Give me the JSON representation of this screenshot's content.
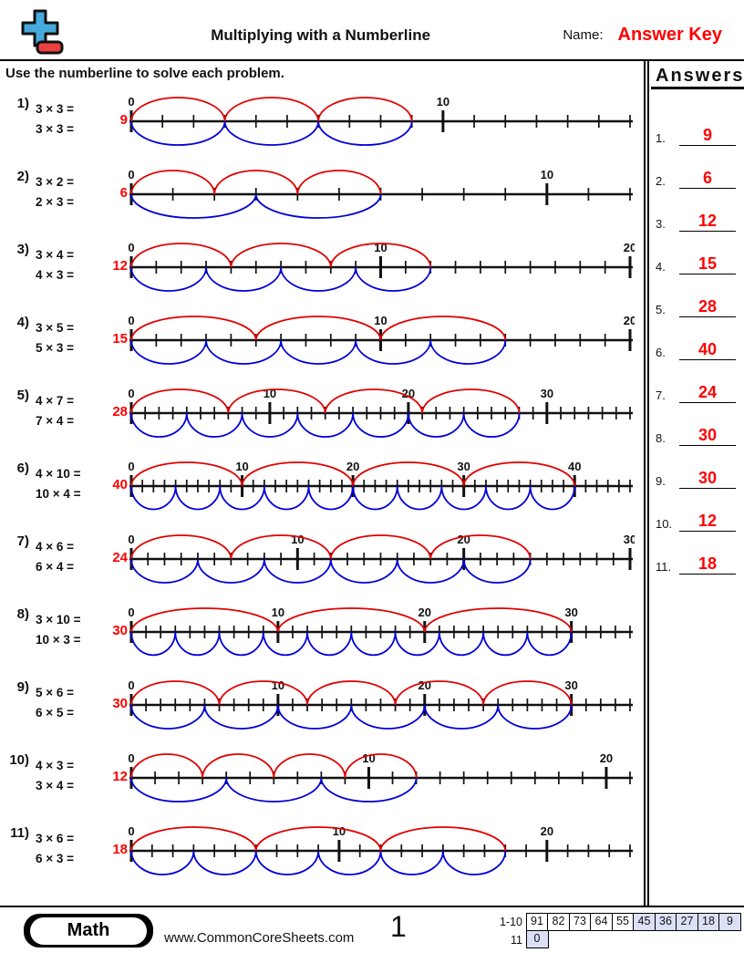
{
  "header": {
    "title": "Multiplying with a Numberline",
    "name_label": "Name:",
    "name_value": "Answer Key"
  },
  "instruction": "Use the numberline to solve each problem.",
  "answers_panel": {
    "title": "Answers",
    "items": [
      {
        "num": "1.",
        "value": "9"
      },
      {
        "num": "2.",
        "value": "6"
      },
      {
        "num": "3.",
        "value": "12"
      },
      {
        "num": "4.",
        "value": "15"
      },
      {
        "num": "5.",
        "value": "28"
      },
      {
        "num": "6.",
        "value": "40"
      },
      {
        "num": "7.",
        "value": "24"
      },
      {
        "num": "8.",
        "value": "30"
      },
      {
        "num": "9.",
        "value": "30"
      },
      {
        "num": "10.",
        "value": "12"
      },
      {
        "num": "11.",
        "value": "18"
      }
    ]
  },
  "problems": [
    {
      "num": "1)",
      "eq1": "3 × 3 =",
      "eq2": "3 × 3 =",
      "answer": "9",
      "numberline": {
        "end": 16,
        "tick_step": 1,
        "labels": [
          0,
          10
        ],
        "red_arcs": {
          "count": 3,
          "span": 3
        },
        "blue_arcs": {
          "count": 3,
          "span": 3
        }
      }
    },
    {
      "num": "2)",
      "eq1": "3 × 2 =",
      "eq2": "2 × 3 =",
      "answer": "6",
      "numberline": {
        "end": 12,
        "tick_step": 1,
        "labels": [
          0,
          10
        ],
        "red_arcs": {
          "count": 3,
          "span": 2
        },
        "blue_arcs": {
          "count": 2,
          "span": 3
        }
      }
    },
    {
      "num": "3)",
      "eq1": "3 × 4 =",
      "eq2": "4 × 3 =",
      "answer": "12",
      "numberline": {
        "end": 20,
        "tick_step": 1,
        "labels": [
          0,
          10,
          20
        ],
        "red_arcs": {
          "count": 3,
          "span": 4
        },
        "blue_arcs": {
          "count": 4,
          "span": 3
        }
      }
    },
    {
      "num": "4)",
      "eq1": "3 × 5 =",
      "eq2": "5 × 3 =",
      "answer": "15",
      "numberline": {
        "end": 20,
        "tick_step": 1,
        "labels": [
          0,
          10,
          20
        ],
        "red_arcs": {
          "count": 3,
          "span": 5
        },
        "blue_arcs": {
          "count": 5,
          "span": 3
        }
      }
    },
    {
      "num": "5)",
      "eq1": "4 × 7 =",
      "eq2": "7 × 4 =",
      "answer": "28",
      "numberline": {
        "end": 36,
        "tick_step": 1,
        "labels": [
          0,
          10,
          20,
          30
        ],
        "red_arcs": {
          "count": 4,
          "span": 7
        },
        "blue_arcs": {
          "count": 7,
          "span": 4
        }
      }
    },
    {
      "num": "6)",
      "eq1": "4 × 10 =",
      "eq2": "10 × 4 =",
      "answer": "40",
      "numberline": {
        "end": 45,
        "tick_step": 1,
        "labels": [
          0,
          10,
          20,
          30,
          40
        ],
        "red_arcs": {
          "count": 4,
          "span": 10
        },
        "blue_arcs": {
          "count": 10,
          "span": 4
        }
      }
    },
    {
      "num": "7)",
      "eq1": "4 × 6 =",
      "eq2": "6 × 4 =",
      "answer": "24",
      "numberline": {
        "end": 30,
        "tick_step": 1,
        "labels": [
          0,
          10,
          20,
          30
        ],
        "red_arcs": {
          "count": 4,
          "span": 6
        },
        "blue_arcs": {
          "count": 6,
          "span": 4
        }
      }
    },
    {
      "num": "8)",
      "eq1": "3 × 10 =",
      "eq2": "10 × 3 =",
      "answer": "30",
      "numberline": {
        "end": 34,
        "tick_step": 1,
        "labels": [
          0,
          10,
          20,
          30
        ],
        "red_arcs": {
          "count": 3,
          "span": 10
        },
        "blue_arcs": {
          "count": 10,
          "span": 3
        }
      }
    },
    {
      "num": "9)",
      "eq1": "5 × 6 =",
      "eq2": "6 × 5 =",
      "answer": "30",
      "numberline": {
        "end": 34,
        "tick_step": 1,
        "labels": [
          0,
          10,
          20,
          30
        ],
        "red_arcs": {
          "count": 5,
          "span": 6
        },
        "blue_arcs": {
          "count": 6,
          "span": 5
        }
      }
    },
    {
      "num": "10)",
      "eq1": "4 × 3 =",
      "eq2": "3 × 4 =",
      "answer": "12",
      "numberline": {
        "end": 21,
        "tick_step": 1,
        "labels": [
          0,
          10,
          20
        ],
        "red_arcs": {
          "count": 4,
          "span": 3
        },
        "blue_arcs": {
          "count": 3,
          "span": 4
        }
      }
    },
    {
      "num": "11)",
      "eq1": "3 × 6 =",
      "eq2": "6 × 3 =",
      "answer": "18",
      "numberline": {
        "end": 24,
        "tick_step": 1,
        "labels": [
          0,
          10,
          20
        ],
        "red_arcs": {
          "count": 3,
          "span": 6
        },
        "blue_arcs": {
          "count": 6,
          "span": 3
        }
      }
    }
  ],
  "footer": {
    "badge": "Math",
    "website": "www.CommonCoreSheets.com",
    "page_number": "1",
    "grading": {
      "row1_label": "1-10",
      "row1_cells": [
        {
          "v": "91",
          "hl": false
        },
        {
          "v": "82",
          "hl": false
        },
        {
          "v": "73",
          "hl": false
        },
        {
          "v": "64",
          "hl": false
        },
        {
          "v": "55",
          "hl": false
        },
        {
          "v": "45",
          "hl": true
        },
        {
          "v": "36",
          "hl": true
        },
        {
          "v": "27",
          "hl": true
        },
        {
          "v": "18",
          "hl": true
        },
        {
          "v": "9",
          "hl": true
        }
      ],
      "row2_label": "11",
      "row2_cells": [
        {
          "v": "0",
          "hl": true
        }
      ]
    }
  },
  "colors": {
    "answer_red": "#fe0000",
    "arc_red": "#e10000",
    "arc_blue": "#0000d9",
    "logo_blue": "#45aadd",
    "logo_red": "#ee4040",
    "cell_highlight": "#dce0f7"
  }
}
